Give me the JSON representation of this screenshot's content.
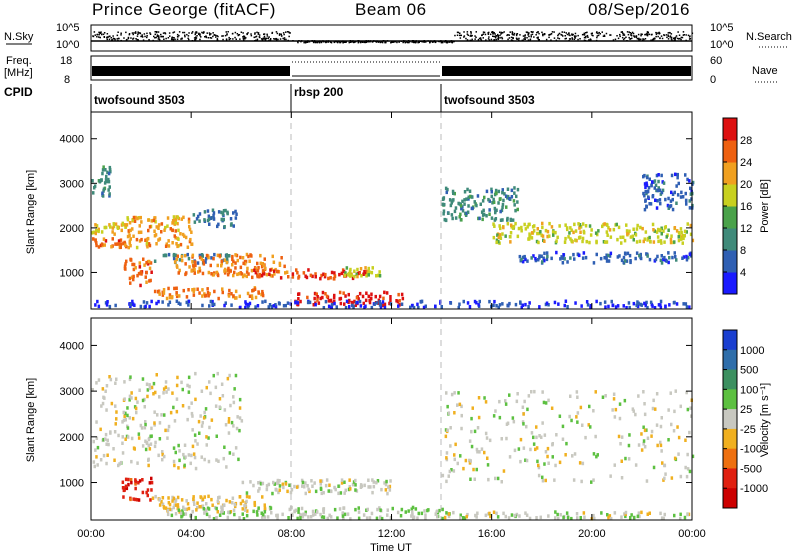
{
  "header": {
    "title_left": "Prince George (fitACF)",
    "title_center": "Beam 06",
    "title_right": "08/Sep/2016"
  },
  "strip": {
    "left_label_1": "N.Sky",
    "left_tick_1_top": "10^5",
    "left_tick_1_bot": "10^0",
    "right_tick_1_top": "10^5",
    "right_tick_1_bot": "10^0",
    "right_label_1": "N.Search",
    "left_label_2a": "Freq.",
    "left_label_2b": "[MHz]",
    "left_tick_2_top": "18",
    "left_tick_2_bot": "8",
    "right_tick_2_top": "60",
    "right_tick_2_bot": "0",
    "right_label_2": "Nave",
    "cpid_label": "CPID",
    "cpid_programs": [
      {
        "name": "twofsound 3503",
        "start_h": 0,
        "end_h": 8
      },
      {
        "name": "rbsp 200",
        "start_h": 8,
        "end_h": 14
      },
      {
        "name": "twofsound 3503",
        "start_h": 14,
        "end_h": 24
      }
    ]
  },
  "panels": {
    "ylabel": "Slant Range [km]",
    "yticks": [
      "1000",
      "2000",
      "3000",
      "4000"
    ],
    "xlabel": "Time UT",
    "xticks": [
      "00:00",
      "04:00",
      "08:00",
      "12:00",
      "16:00",
      "20:00",
      "00:00"
    ]
  },
  "colorbars": {
    "power_title": "Power [dB]",
    "power_ticks": [
      "4",
      "8",
      "12",
      "16",
      "20",
      "24",
      "28"
    ],
    "power_colors": [
      "#1a1aff",
      "#2f5fb3",
      "#3f8a7a",
      "#4aa24a",
      "#c8d020",
      "#f0a020",
      "#ee6010",
      "#dd1010"
    ],
    "velocity_title": "Velocity [m s⁻¹]",
    "velocity_ticks": [
      "1000",
      "500",
      "100",
      "25",
      "-25",
      "-100",
      "-500",
      "-1000"
    ],
    "velocity_colors": [
      "#1a3fd0",
      "#2f6eaa",
      "#3c9060",
      "#5cc040",
      "#c8c8c0",
      "#f0b020",
      "#ee7010",
      "#e02010",
      "#cc0000"
    ]
  },
  "chart_data": [
    {
      "type": "heatmap",
      "name": "Power",
      "xlabel": "Time UT",
      "ylabel": "Slant Range [km]",
      "xlim": [
        0,
        24
      ],
      "ylim": [
        180,
        4600
      ],
      "colorbar": {
        "label": "Power [dB]",
        "range": [
          0,
          32
        ]
      },
      "scatter_bands": [
        {
          "t_start": 0.0,
          "t_end": 0.8,
          "range_start": 2700,
          "range_end": 3400,
          "level": 10
        },
        {
          "t_start": 0.0,
          "t_end": 1.5,
          "range_start": 1850,
          "range_end": 2100,
          "level": 20
        },
        {
          "t_start": 0.0,
          "t_end": 1.5,
          "range_start": 1550,
          "range_end": 1750,
          "level": 26
        },
        {
          "t_start": 1.3,
          "t_end": 4.0,
          "range_start": 1550,
          "range_end": 2250,
          "level": 22
        },
        {
          "t_start": 1.2,
          "t_end": 2.4,
          "range_start": 700,
          "range_end": 1300,
          "level": 26
        },
        {
          "t_start": 4.0,
          "t_end": 5.8,
          "range_start": 2000,
          "range_end": 2400,
          "level": 8
        },
        {
          "t_start": 2.5,
          "t_end": 5.5,
          "range_start": 1200,
          "range_end": 1400,
          "level": 8
        },
        {
          "t_start": 3.3,
          "t_end": 7.8,
          "range_start": 900,
          "range_end": 1400,
          "level": 24
        },
        {
          "t_start": 2.5,
          "t_end": 7.0,
          "range_start": 400,
          "range_end": 650,
          "level": 24
        },
        {
          "t_start": 6.0,
          "t_end": 11.0,
          "range_start": 850,
          "range_end": 1050,
          "level": 28
        },
        {
          "t_start": 8.0,
          "t_end": 12.5,
          "range_start": 250,
          "range_end": 550,
          "level": 30
        },
        {
          "t_start": 10.0,
          "t_end": 11.5,
          "range_start": 900,
          "range_end": 1100,
          "level": 18
        },
        {
          "t_start": 14.0,
          "t_end": 17.0,
          "range_start": 2150,
          "range_end": 2900,
          "level": 10
        },
        {
          "t_start": 16.0,
          "t_end": 24.0,
          "range_start": 1650,
          "range_end": 2100,
          "level": 18
        },
        {
          "t_start": 17.0,
          "t_end": 24.0,
          "range_start": 1200,
          "range_end": 1450,
          "level": 6
        },
        {
          "t_start": 22.0,
          "t_end": 24.0,
          "range_start": 2400,
          "range_end": 3200,
          "level": 6
        },
        {
          "t_start": 0.0,
          "t_end": 24.0,
          "range_start": 200,
          "range_end": 350,
          "level": 4
        }
      ]
    },
    {
      "type": "heatmap",
      "name": "Velocity",
      "xlabel": "Time UT",
      "ylabel": "Slant Range [km]",
      "xlim": [
        0,
        24
      ],
      "ylim": [
        180,
        4600
      ],
      "colorbar": {
        "label": "Velocity [m s⁻¹]",
        "range": [
          -1000,
          1000
        ]
      },
      "scatter_bands": [
        {
          "t_start": 0.0,
          "t_end": 6.0,
          "range_start": 1300,
          "range_end": 3400,
          "level": 0
        },
        {
          "t_start": 1.2,
          "t_end": 2.4,
          "range_start": 600,
          "range_end": 1100,
          "level": -700
        },
        {
          "t_start": 2.4,
          "t_end": 7.0,
          "range_start": 350,
          "range_end": 700,
          "level": -150
        },
        {
          "t_start": 6.0,
          "t_end": 12.0,
          "range_start": 750,
          "range_end": 1050,
          "level": 0
        },
        {
          "t_start": 3.0,
          "t_end": 14.0,
          "range_start": 200,
          "range_end": 450,
          "level": 80
        },
        {
          "t_start": 14.0,
          "t_end": 24.0,
          "range_start": 1000,
          "range_end": 3000,
          "level": 0
        },
        {
          "t_start": 14.0,
          "t_end": 24.0,
          "range_start": 200,
          "range_end": 350,
          "level": 20
        }
      ]
    }
  ]
}
